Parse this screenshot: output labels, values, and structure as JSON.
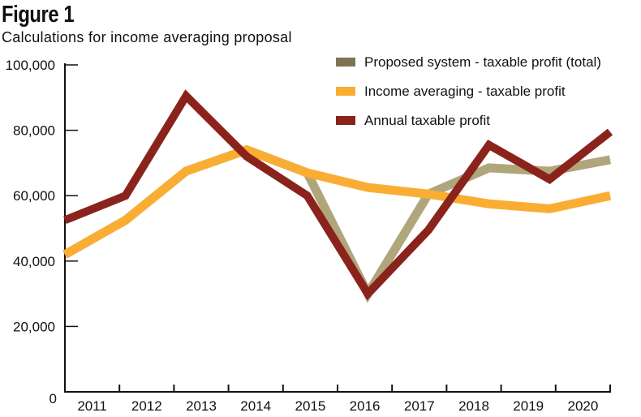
{
  "figure": {
    "title": "Figure 1",
    "subtitle": "Calculations for income averaging proposal"
  },
  "chart_data": {
    "type": "line",
    "title": "Figure 1",
    "subtitle": "Calculations for income averaging proposal",
    "xlabel": "",
    "ylabel": "",
    "x": [
      "2011",
      "2012",
      "2013",
      "2014",
      "2015",
      "2016",
      "2017",
      "2018",
      "2019",
      "2020"
    ],
    "ylim": [
      0,
      100000
    ],
    "yticks": [
      0,
      20000,
      40000,
      60000,
      80000,
      100000
    ],
    "ytick_labels": [
      "0",
      "20,000",
      "40,000",
      "60,000",
      "80,000",
      "100,000"
    ],
    "grid": false,
    "legend_position": "top-right",
    "series": [
      {
        "name": "Proposed system - taxable profit (total)",
        "color": "#b0a67c",
        "legend_color": "#7d7552",
        "values": [
          42000,
          52500,
          67500,
          74000,
          67000,
          30000,
          60500,
          68500,
          67500,
          71000
        ]
      },
      {
        "name": "Income averaging - taxable profit",
        "color": "#f9ae33",
        "legend_color": "#f9ae33",
        "values": [
          42000,
          52500,
          67500,
          74000,
          67000,
          62500,
          60500,
          57500,
          56000,
          60000
        ]
      },
      {
        "name": "Annual taxable profit",
        "color": "#8b231d",
        "legend_color": "#8b231d",
        "values": [
          52500,
          60000,
          90500,
          72000,
          60000,
          30000,
          49500,
          75500,
          65000,
          79500
        ]
      }
    ]
  }
}
